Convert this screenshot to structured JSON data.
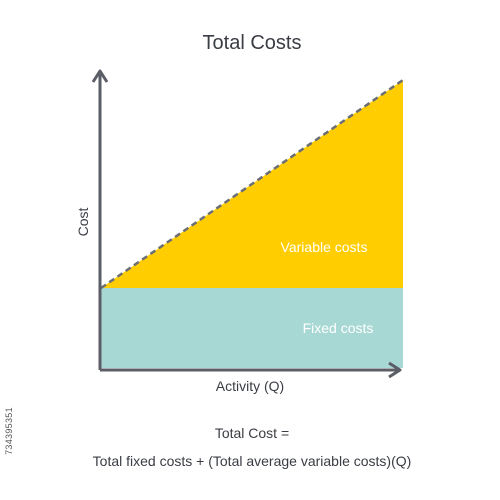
{
  "chart_data": {
    "type": "area",
    "title": "Total Costs",
    "xlabel": "Activity (Q)",
    "ylabel": "Cost",
    "series": [
      {
        "name": "Fixed costs",
        "type": "area",
        "start": 1,
        "end": 1,
        "color": "#a8d8d4",
        "label": "Fixed costs"
      },
      {
        "name": "Variable costs",
        "type": "area",
        "start": 1,
        "end": 3.6,
        "color": "#ffcd00",
        "label": "Variable costs"
      }
    ],
    "total_line_style": "dashed",
    "total_line_color": "#6b6e75",
    "grid": false,
    "formula": {
      "line1": "Total Cost =",
      "line2": "Total fixed costs + (Total average variable costs)(Q)"
    }
  },
  "side_id": "734395351"
}
